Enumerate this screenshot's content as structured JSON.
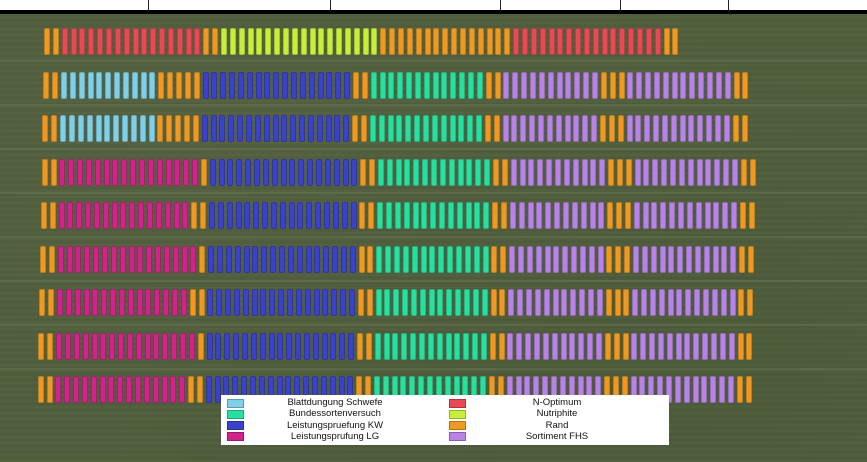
{
  "map": {
    "type": "aerial field trial plot layout",
    "background_color": "#4f5c3f"
  },
  "legend": {
    "left": [
      {
        "label": "Blattdungung Schwefe",
        "color": "#7ecfe8",
        "key": "blatt"
      },
      {
        "label": "Bundessortenversuch",
        "color": "#27e0a0",
        "key": "bsv"
      },
      {
        "label": "Leistungspruefung KW",
        "color": "#3a43c8",
        "key": "kw"
      },
      {
        "label": "Leistungsprufung LG",
        "color": "#d0248a",
        "key": "lg"
      }
    ],
    "right": [
      {
        "label": "N-Optimum",
        "color": "#e84a55",
        "key": "nopt"
      },
      {
        "label": "Nutriphite",
        "color": "#c6ee3a",
        "key": "nutri"
      },
      {
        "label": "Rand",
        "color": "#ee9a22",
        "key": "rand"
      },
      {
        "label": "Sortiment FHS",
        "color": "#b883e6",
        "key": "fhs"
      }
    ]
  },
  "rows": [
    [
      [
        "rand",
        2
      ],
      [
        "nopt",
        16
      ],
      [
        "rand",
        2
      ],
      [
        "nutri",
        18
      ],
      [
        "rand",
        15
      ],
      [
        "nopt",
        17
      ],
      [
        "rand",
        2
      ]
    ],
    [
      [
        "rand",
        2
      ],
      [
        "blatt",
        11
      ],
      [
        "rand",
        5
      ],
      [
        "kw",
        17
      ],
      [
        "rand",
        2
      ],
      [
        "bsv",
        13
      ],
      [
        "rand",
        2
      ],
      [
        "fhs",
        11
      ],
      [
        "rand",
        3
      ],
      [
        "fhs",
        12
      ],
      [
        "rand",
        2
      ]
    ],
    [
      [
        "rand",
        2
      ],
      [
        "blatt",
        11
      ],
      [
        "rand",
        5
      ],
      [
        "kw",
        17
      ],
      [
        "rand",
        2
      ],
      [
        "bsv",
        13
      ],
      [
        "rand",
        2
      ],
      [
        "fhs",
        11
      ],
      [
        "rand",
        3
      ],
      [
        "fhs",
        12
      ],
      [
        "rand",
        2
      ]
    ],
    [
      [
        "rand",
        2
      ],
      [
        "lg",
        16
      ],
      [
        "rand",
        1
      ],
      [
        "kw",
        17
      ],
      [
        "rand",
        2
      ],
      [
        "bsv",
        13
      ],
      [
        "rand",
        2
      ],
      [
        "fhs",
        11
      ],
      [
        "rand",
        3
      ],
      [
        "fhs",
        12
      ],
      [
        "rand",
        2
      ]
    ],
    [
      [
        "rand",
        2
      ],
      [
        "lg",
        15
      ],
      [
        "rand",
        2
      ],
      [
        "kw",
        17
      ],
      [
        "rand",
        2
      ],
      [
        "bsv",
        13
      ],
      [
        "rand",
        2
      ],
      [
        "fhs",
        11
      ],
      [
        "rand",
        3
      ],
      [
        "fhs",
        12
      ],
      [
        "rand",
        2
      ]
    ],
    [
      [
        "rand",
        2
      ],
      [
        "lg",
        16
      ],
      [
        "rand",
        1
      ],
      [
        "kw",
        17
      ],
      [
        "rand",
        2
      ],
      [
        "bsv",
        13
      ],
      [
        "rand",
        2
      ],
      [
        "fhs",
        11
      ],
      [
        "rand",
        3
      ],
      [
        "fhs",
        12
      ],
      [
        "rand",
        2
      ]
    ],
    [
      [
        "rand",
        2
      ],
      [
        "lg",
        15
      ],
      [
        "rand",
        2
      ],
      [
        "kw",
        17
      ],
      [
        "rand",
        2
      ],
      [
        "bsv",
        13
      ],
      [
        "rand",
        2
      ],
      [
        "fhs",
        11
      ],
      [
        "rand",
        3
      ],
      [
        "fhs",
        12
      ],
      [
        "rand",
        2
      ]
    ],
    [
      [
        "rand",
        2
      ],
      [
        "lg",
        16
      ],
      [
        "rand",
        1
      ],
      [
        "kw",
        17
      ],
      [
        "rand",
        2
      ],
      [
        "bsv",
        13
      ],
      [
        "rand",
        2
      ],
      [
        "fhs",
        11
      ],
      [
        "rand",
        3
      ],
      [
        "fhs",
        12
      ],
      [
        "rand",
        2
      ]
    ],
    [
      [
        "rand",
        2
      ],
      [
        "lg",
        15
      ],
      [
        "rand",
        2
      ],
      [
        "kw",
        17
      ],
      [
        "rand",
        2
      ],
      [
        "bsv",
        13
      ],
      [
        "rand",
        2
      ],
      [
        "fhs",
        11
      ],
      [
        "rand",
        3
      ],
      [
        "fhs",
        12
      ],
      [
        "rand",
        2
      ]
    ]
  ]
}
